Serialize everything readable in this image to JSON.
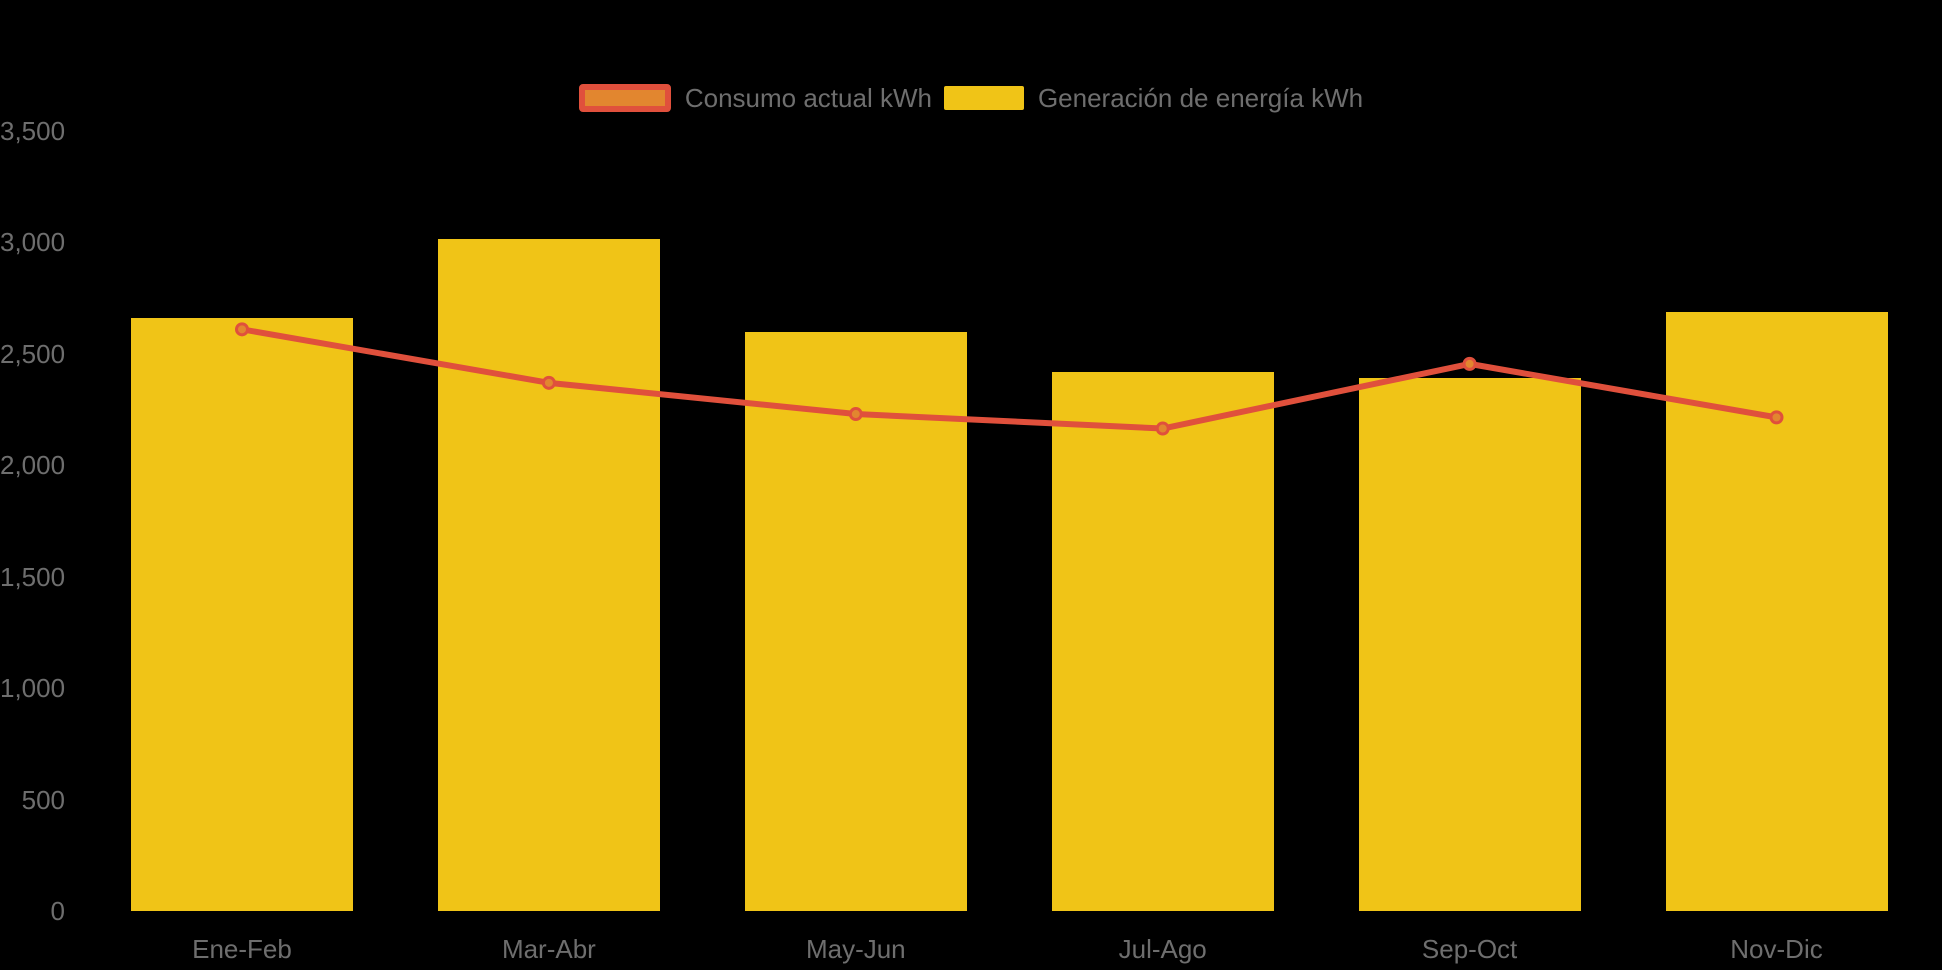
{
  "background_color": "#000000",
  "text_color": "#6E6E6E",
  "legend": {
    "position": "top-center",
    "items": [
      {
        "label": "Consumo actual kWh",
        "swatch": "line-marker",
        "fill": "#E2862F",
        "border": "#E0503C"
      },
      {
        "label": "Generación de energía kWh",
        "swatch": "bar",
        "fill": "#F0C417"
      }
    ]
  },
  "chart_data": {
    "type": "combo",
    "title": "",
    "xlabel": "",
    "ylabel": "",
    "categories": [
      "Ene-Feb",
      "Mar-Abr",
      "May-Jun",
      "Jul-Ago",
      "Sep-Oct",
      "Nov-Dic"
    ],
    "series": [
      {
        "name": "Consumo actual kWh",
        "type": "line",
        "color": "#E0503C",
        "marker_fill": "#E2862F",
        "marker_stroke": "#E0503C",
        "values": [
          2610,
          2370,
          2230,
          2165,
          2455,
          2215
        ]
      },
      {
        "name": "Generación de energía kWh",
        "type": "bar",
        "color": "#F0C417",
        "values": [
          2660,
          3015,
          2600,
          2420,
          2390,
          2690
        ]
      }
    ],
    "y_axis": {
      "min": 0,
      "max": 3500,
      "step": 500,
      "tick_labels": [
        "0",
        "500",
        "1,000",
        "1,500",
        "2,000",
        "2,500",
        "3,000",
        "3,500"
      ]
    },
    "grid": "off",
    "legend_position": "top-center"
  }
}
